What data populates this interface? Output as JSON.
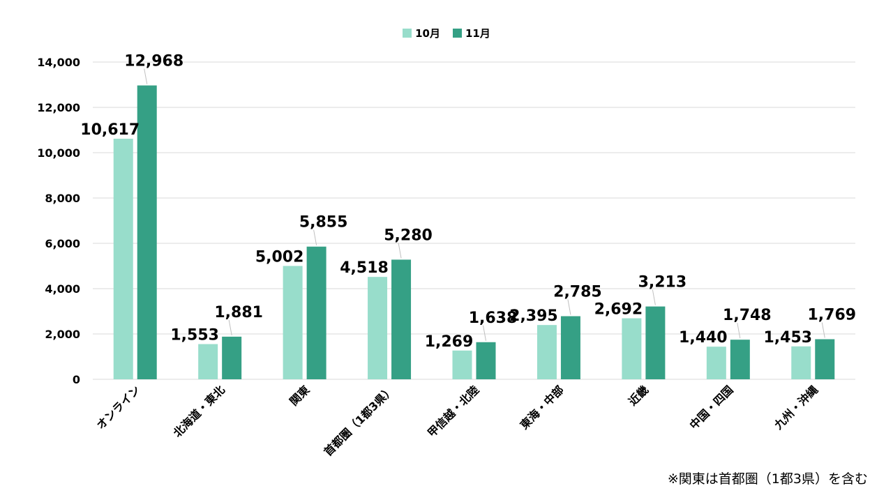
{
  "chart_data": {
    "type": "bar",
    "categories": [
      "オンライン",
      "北海道・東北",
      "関東",
      "首都圏（1都3県）",
      "甲信越・北陸",
      "東海・中部",
      "近畿",
      "中国・四国",
      "九州・沖縄"
    ],
    "series": [
      {
        "name": "10月",
        "color": "#98ddcb",
        "values": [
          10617,
          1553,
          5002,
          4518,
          1269,
          2395,
          2692,
          1440,
          1453
        ]
      },
      {
        "name": "11月",
        "color": "#35a085",
        "values": [
          12968,
          1881,
          5855,
          5280,
          1638,
          2785,
          3213,
          1748,
          1769
        ]
      }
    ],
    "value_labels": [
      [
        "10,617",
        "1,553",
        "5,002",
        "4,518",
        "1,269",
        "2,395",
        "2,692",
        "1,440",
        "1,453"
      ],
      [
        "12,968",
        "1,881",
        "5,855",
        "5,280",
        "1,638",
        "2,785",
        "3,213",
        "1,748",
        "1,769"
      ]
    ],
    "ylim": [
      0,
      14000
    ],
    "yticks": [
      0,
      2000,
      4000,
      6000,
      8000,
      10000,
      12000,
      14000
    ],
    "ytick_labels": [
      "0",
      "2,000",
      "4,000",
      "6,000",
      "8,000",
      "10,000",
      "12,000",
      "14,000"
    ],
    "grid": true,
    "legend_position": "top-center",
    "title": "",
    "xlabel": "",
    "ylabel": ""
  },
  "footnote": "※関東は首都圏（1都3県）を含む"
}
